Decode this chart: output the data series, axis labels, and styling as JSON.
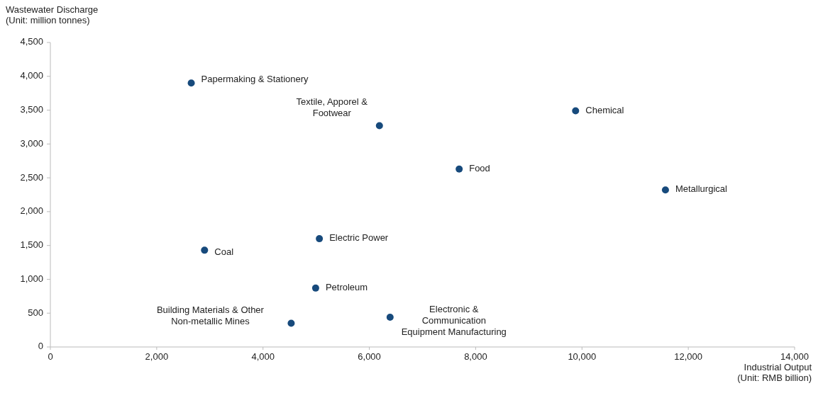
{
  "chart_data": {
    "type": "scatter",
    "xlabel": "Industrial Output\n(Unit: RMB billion)",
    "ylabel": "Wastewater Discharge\n(Unit: million tonnes)",
    "series": [
      {
        "name": "Papermaking & Stationery",
        "color": "#174a7c",
        "x": [
          2650
        ],
        "values": [
          3900
        ]
      },
      {
        "name": "Textile, Apporel & Footwear",
        "color": "#174a7c",
        "x": [
          6190
        ],
        "values": [
          3270
        ]
      },
      {
        "name": "Chemical",
        "color": "#174a7c",
        "x": [
          9880
        ],
        "values": [
          3490
        ]
      },
      {
        "name": "Food",
        "color": "#174a7c",
        "x": [
          7690
        ],
        "values": [
          2630
        ]
      },
      {
        "name": "Metallurgical",
        "color": "#174a7c",
        "x": [
          11570
        ],
        "values": [
          2320
        ]
      },
      {
        "name": "Coal",
        "color": "#174a7c",
        "x": [
          2900
        ],
        "values": [
          1430
        ]
      },
      {
        "name": "Electric Power",
        "color": "#174a7c",
        "x": [
          5060
        ],
        "values": [
          1600
        ]
      },
      {
        "name": "Petroleum",
        "color": "#174a7c",
        "x": [
          4990
        ],
        "values": [
          870
        ]
      },
      {
        "name": "Building Materials & Other Non-metallic Mines",
        "color": "#174a7c",
        "x": [
          4530
        ],
        "values": [
          350
        ]
      },
      {
        "name": "Electronic & Communication Equipment Manufacturing",
        "color": "#174a7c",
        "x": [
          6390
        ],
        "values": [
          440
        ]
      }
    ],
    "marker": "circle",
    "xlim": [
      0,
      14000
    ],
    "xticks": [
      0,
      {
        "value": 2000,
        "label": "2,000"
      },
      {
        "value": 4000,
        "label": "4,000"
      },
      {
        "value": 6000,
        "label": "6,000"
      },
      {
        "value": 8000,
        "label": "8,000"
      },
      {
        "value": 10000,
        "label": "10,000"
      },
      {
        "value": 12000,
        "label": "12,000"
      },
      {
        "value": 14000,
        "label": "14,000"
      }
    ],
    "ylim": [
      0,
      4500
    ],
    "yticks": [
      0,
      500,
      {
        "value": 1000,
        "label": "1,000"
      },
      {
        "value": 1500,
        "label": "1,500"
      },
      {
        "value": 2000,
        "label": "2,000"
      },
      {
        "value": 2500,
        "label": "2,500"
      },
      {
        "value": 3000,
        "label": "3,000"
      },
      {
        "value": 3500,
        "label": "3,500"
      },
      {
        "value": 4000,
        "label": "4,000"
      },
      {
        "value": 4500,
        "label": "4,500"
      }
    ],
    "grid": false
  }
}
